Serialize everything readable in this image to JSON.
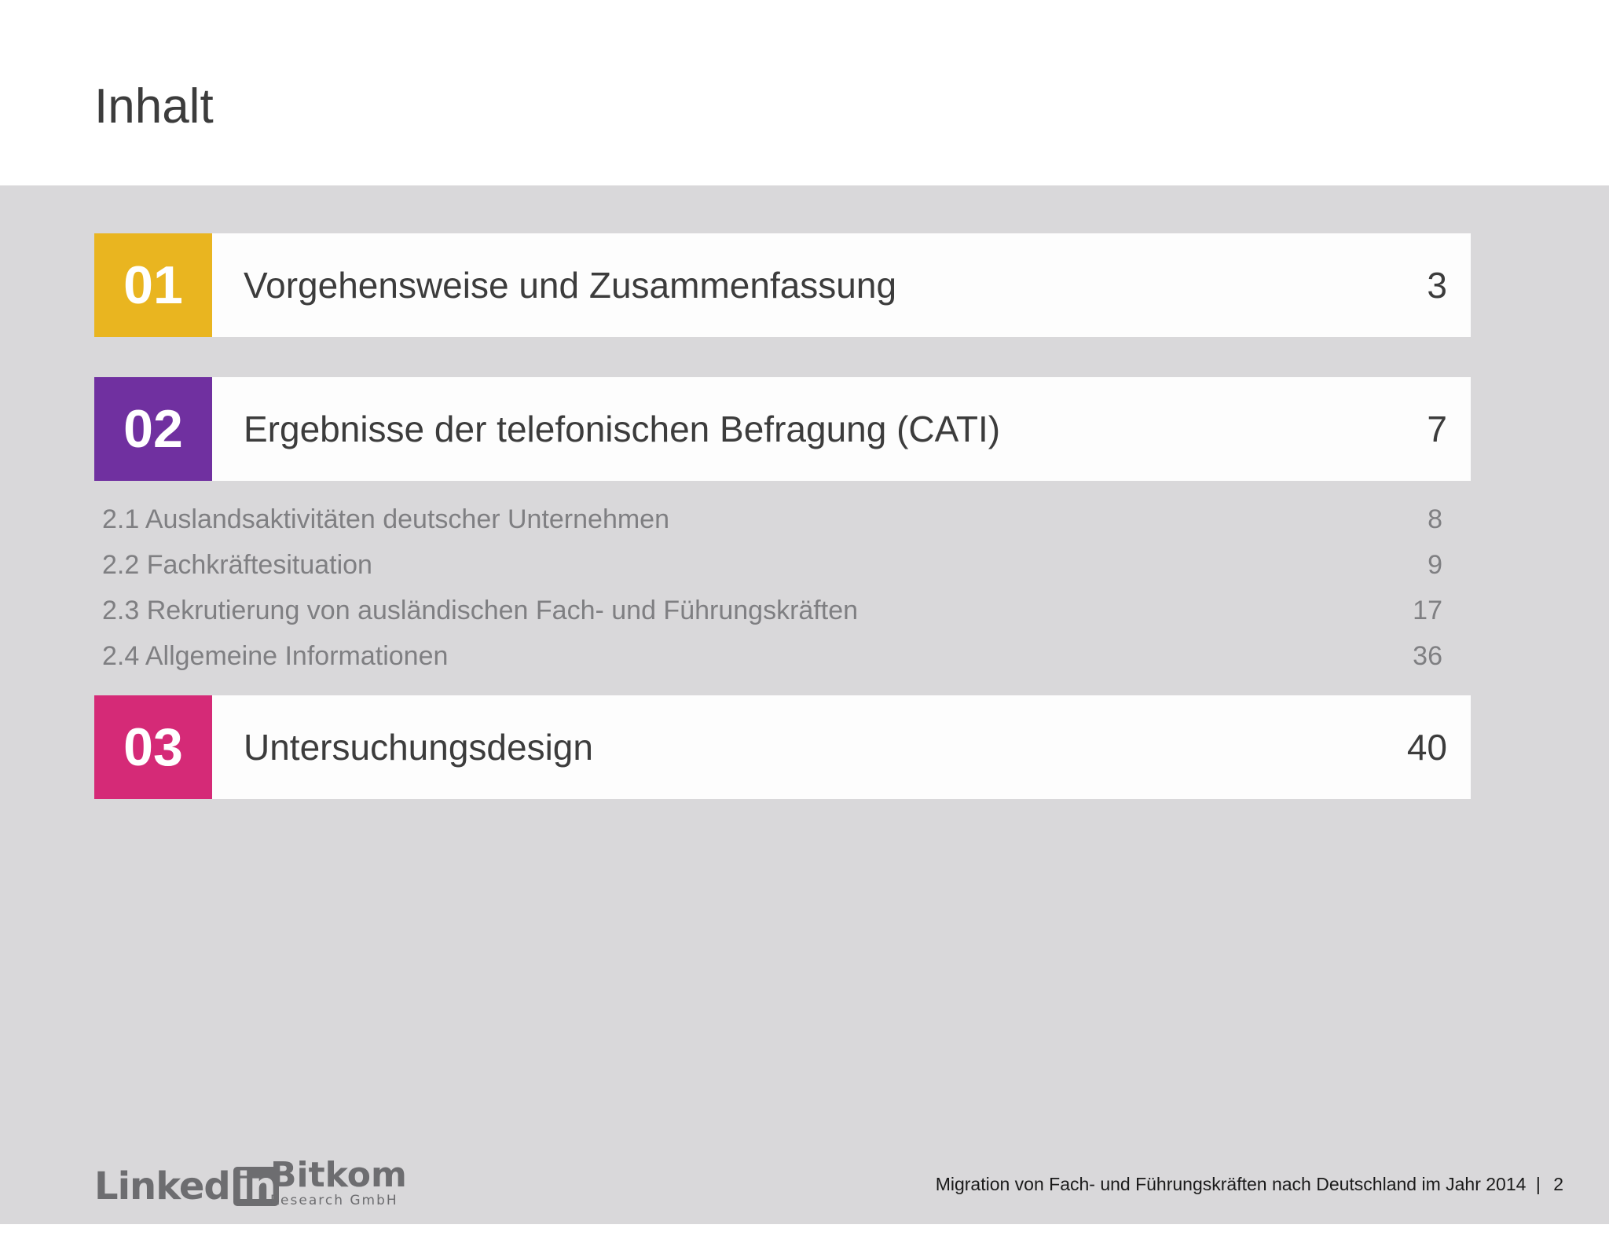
{
  "page": {
    "title": "Inhalt"
  },
  "sections": [
    {
      "number": "01",
      "title": "Vorgehensweise und Zusammenfassung",
      "page": "3",
      "color": "#e9b520"
    },
    {
      "number": "02",
      "title": "Ergebnisse der telefonischen Befragung (CATI)",
      "page": "7",
      "color": "#7030a0"
    },
    {
      "number": "03",
      "title": "Untersuchungsdesign",
      "page": "40",
      "color": "#d52a77"
    }
  ],
  "subsections": [
    {
      "title": "2.1 Auslandsaktivitäten deutscher Unternehmen",
      "page": "8"
    },
    {
      "title": "2.2 Fachkräftesituation",
      "page": "9"
    },
    {
      "title": "2.3 Rekrutierung von ausländischen Fach- und Führungskräften",
      "page": "17"
    },
    {
      "title": "2.4 Allgemeine Informationen",
      "page": "36"
    }
  ],
  "footer": {
    "linkedin_logo_text": "Linked",
    "linkedin_logo_in": "in",
    "bitkom_logo_name": "Bitkom",
    "bitkom_logo_sub": "Research GmbH",
    "document_title": "Migration von Fach- und Führungskräften nach Deutschland im Jahr 2014",
    "separator": "|",
    "page_number": "2"
  }
}
